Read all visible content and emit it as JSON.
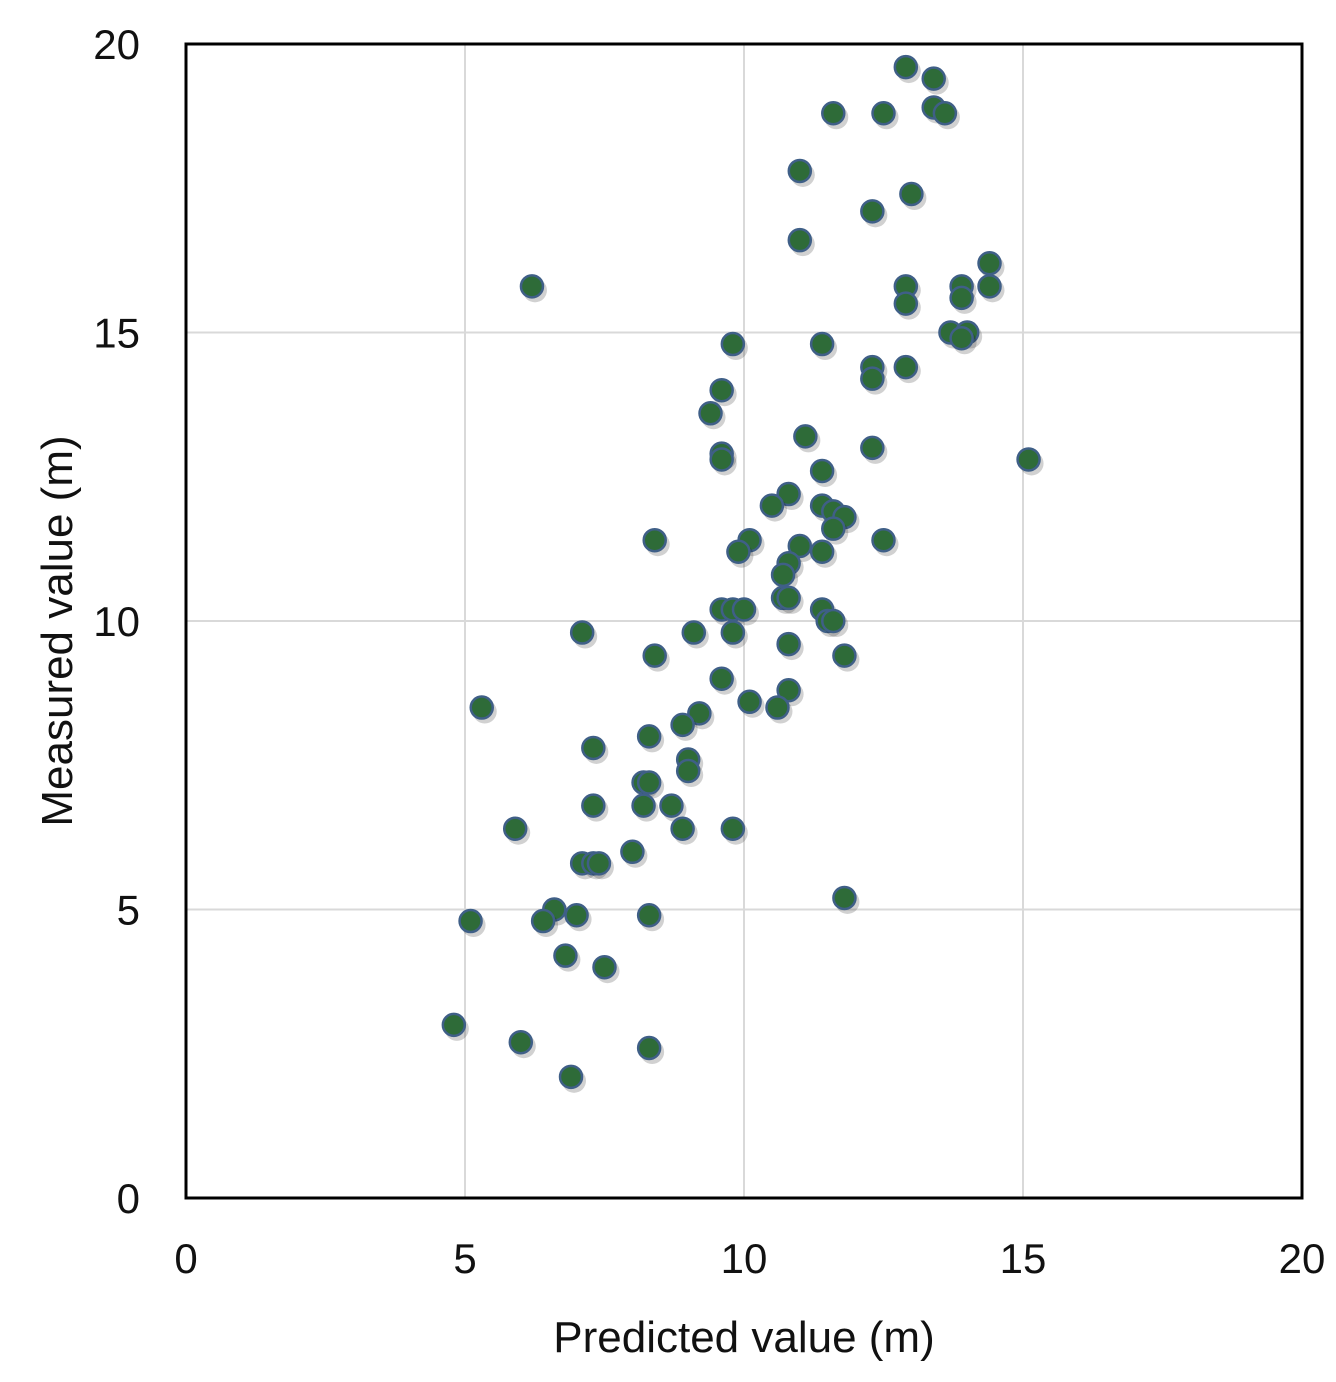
{
  "chart_data": {
    "type": "scatter",
    "title": "",
    "xlabel": "Predicted value (m)",
    "ylabel": "Measured value (m)",
    "xlim": [
      0,
      20
    ],
    "ylim": [
      0,
      20
    ],
    "x_ticks": [
      "0",
      "5",
      "10",
      "15",
      "20"
    ],
    "y_ticks": [
      "0",
      "5",
      "10",
      "15",
      "20"
    ],
    "grid": true,
    "legend": "none",
    "marker_color": "#2e6b38",
    "marker_edge_color": "#3f5f87",
    "series": [
      {
        "points": [
          [
            12.9,
            19.6
          ],
          [
            13.4,
            19.4
          ],
          [
            13.4,
            18.9
          ],
          [
            13.6,
            18.8
          ],
          [
            11.6,
            18.8
          ],
          [
            12.5,
            18.8
          ],
          [
            11.0,
            17.8
          ],
          [
            13.0,
            17.4
          ],
          [
            12.3,
            17.1
          ],
          [
            11.0,
            16.6
          ],
          [
            14.4,
            16.2
          ],
          [
            6.2,
            15.8
          ],
          [
            12.9,
            15.8
          ],
          [
            13.9,
            15.8
          ],
          [
            14.4,
            15.8
          ],
          [
            12.9,
            15.5
          ],
          [
            13.9,
            15.6
          ],
          [
            13.7,
            15.0
          ],
          [
            14.0,
            15.0
          ],
          [
            13.9,
            14.9
          ],
          [
            9.8,
            14.8
          ],
          [
            11.4,
            14.8
          ],
          [
            12.3,
            14.4
          ],
          [
            12.9,
            14.4
          ],
          [
            12.3,
            14.2
          ],
          [
            9.6,
            14.0
          ],
          [
            9.4,
            13.6
          ],
          [
            11.1,
            13.2
          ],
          [
            9.6,
            12.9
          ],
          [
            9.6,
            12.8
          ],
          [
            12.3,
            13.0
          ],
          [
            11.4,
            12.6
          ],
          [
            15.1,
            12.8
          ],
          [
            10.8,
            12.2
          ],
          [
            10.5,
            12.0
          ],
          [
            11.4,
            12.0
          ],
          [
            11.6,
            11.9
          ],
          [
            11.8,
            11.8
          ],
          [
            11.6,
            11.6
          ],
          [
            8.4,
            11.4
          ],
          [
            10.1,
            11.4
          ],
          [
            12.5,
            11.4
          ],
          [
            9.9,
            11.2
          ],
          [
            11.0,
            11.3
          ],
          [
            11.4,
            11.2
          ],
          [
            10.8,
            11.0
          ],
          [
            10.7,
            10.8
          ],
          [
            10.7,
            10.4
          ],
          [
            10.8,
            10.4
          ],
          [
            9.6,
            10.2
          ],
          [
            9.8,
            10.2
          ],
          [
            10.0,
            10.2
          ],
          [
            11.4,
            10.2
          ],
          [
            11.5,
            10.0
          ],
          [
            11.6,
            10.0
          ],
          [
            7.1,
            9.8
          ],
          [
            9.1,
            9.8
          ],
          [
            9.8,
            9.8
          ],
          [
            10.8,
            9.6
          ],
          [
            8.4,
            9.4
          ],
          [
            11.8,
            9.4
          ],
          [
            9.6,
            9.0
          ],
          [
            10.8,
            8.8
          ],
          [
            10.1,
            8.6
          ],
          [
            10.6,
            8.5
          ],
          [
            5.3,
            8.5
          ],
          [
            9.2,
            8.4
          ],
          [
            8.9,
            8.2
          ],
          [
            8.3,
            8.0
          ],
          [
            7.3,
            7.8
          ],
          [
            9.0,
            7.6
          ],
          [
            9.0,
            7.4
          ],
          [
            8.2,
            7.2
          ],
          [
            8.3,
            7.2
          ],
          [
            7.3,
            6.8
          ],
          [
            8.2,
            6.8
          ],
          [
            8.7,
            6.8
          ],
          [
            5.9,
            6.4
          ],
          [
            8.9,
            6.4
          ],
          [
            9.8,
            6.4
          ],
          [
            8.0,
            6.0
          ],
          [
            7.1,
            5.8
          ],
          [
            7.3,
            5.8
          ],
          [
            7.4,
            5.8
          ],
          [
            11.8,
            5.2
          ],
          [
            6.6,
            5.0
          ],
          [
            7.0,
            4.9
          ],
          [
            8.3,
            4.9
          ],
          [
            5.1,
            4.8
          ],
          [
            6.4,
            4.8
          ],
          [
            6.8,
            4.2
          ],
          [
            7.5,
            4.0
          ],
          [
            4.8,
            3.0
          ],
          [
            6.0,
            2.7
          ],
          [
            8.3,
            2.6
          ],
          [
            6.9,
            2.1
          ]
        ]
      }
    ]
  }
}
